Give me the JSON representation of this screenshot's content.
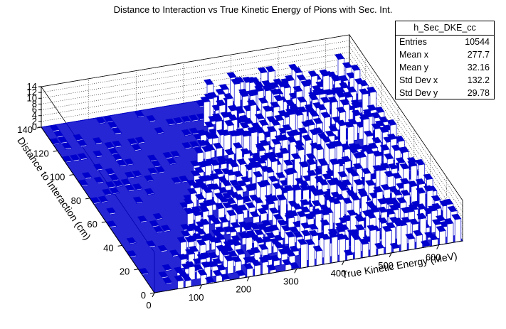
{
  "title": "Distance to Interaction vs True Kinetic Energy of Pions with Sec. Int.",
  "stats": {
    "name": "h_Sec_DKE_cc",
    "rows": [
      {
        "label": "Entries",
        "value": "10544"
      },
      {
        "label": "Mean x",
        "value": "277.7"
      },
      {
        "label": "Mean y",
        "value": "32.16"
      },
      {
        "label": "Std Dev x",
        "value": "132.2"
      },
      {
        "label": "Std Dev y",
        "value": "29.78"
      }
    ]
  },
  "chart_data": {
    "type": "lego3d",
    "title": "Distance to Interaction vs True Kinetic Energy of Pions with Sec. Int.",
    "xlabel": "True Kinetic Energy (MeV)",
    "ylabel": "Distance to Interaction (cm)",
    "xlim": [
      0,
      650
    ],
    "ylim": [
      0,
      140
    ],
    "zlim": [
      0,
      14
    ],
    "x_ticks": [
      0,
      100,
      200,
      300,
      400,
      500,
      600
    ],
    "y_ticks": [
      0,
      20,
      40,
      60,
      80,
      100,
      120,
      140
    ],
    "z_ticks": [
      0,
      2,
      4,
      6,
      8,
      10,
      12,
      14
    ],
    "bar_color": "#0000cc",
    "fill_color": "#ffffff",
    "background": "#ffffff"
  }
}
